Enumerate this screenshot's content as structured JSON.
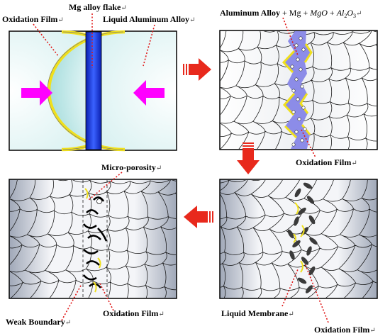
{
  "panel1": {
    "labels": {
      "flake": "Mg alloy flake",
      "film": "Oxidation Film",
      "liquid": "Liquid Aluminum Alloy"
    }
  },
  "panel2": {
    "labels": {
      "formula_lead": "Aluminum Alloy",
      "formula_mg": " + Mg + ",
      "formula_mgo": "MgO",
      "formula_plus": " + ",
      "formula_al": "Al",
      "formula_sub1": "2",
      "formula_o": "O",
      "formula_sub2": "3",
      "film": "Oxidation Film"
    }
  },
  "panel3": {
    "labels": {
      "membrane": "Liquid Membrane",
      "film": "Oxidation Film"
    }
  },
  "panel4": {
    "labels": {
      "porosity": "Micro-porosity",
      "boundary": "Weak Boundary",
      "film": "Oxidation Film"
    }
  },
  "paragraph_mark": "↵",
  "colors": {
    "liquid_fill": "#b9e6e6",
    "oxide_yellow": "#f0e01c",
    "flake_blue": "#1e3cf0",
    "magnesium_purple": "#8c8ce8",
    "push_arrow": "#ff00ff",
    "flow_arrow": "#e8291c",
    "leader_red": "#e01818"
  }
}
